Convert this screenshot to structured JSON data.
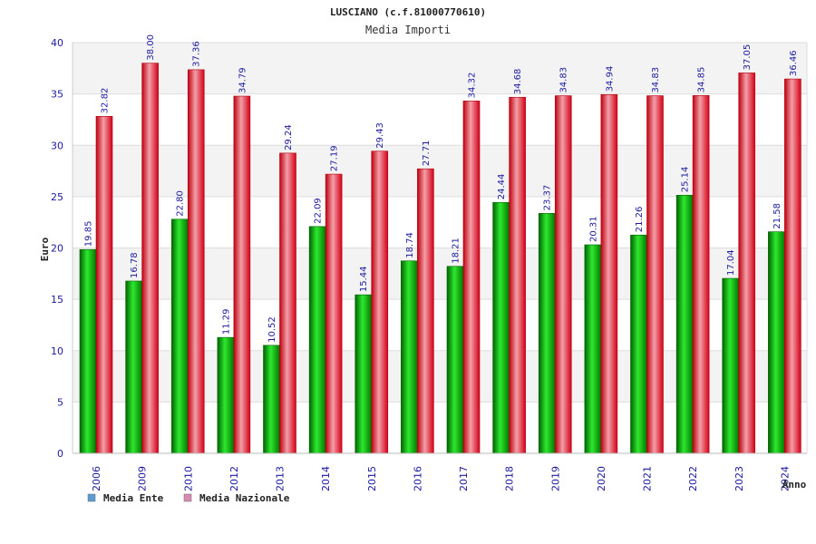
{
  "chart_data": {
    "type": "bar",
    "title": "LUSCIANO (c.f.81000770610)",
    "subtitle": "Media Importi",
    "ylabel": "Euro",
    "xlabel": "Anno",
    "ylim": [
      0,
      40
    ],
    "yticks": [
      0,
      5,
      10,
      15,
      20,
      25,
      30,
      35,
      40
    ],
    "grid": true,
    "legend_position": "bottom-left",
    "categories": [
      "2006",
      "2009",
      "2010",
      "2012",
      "2013",
      "2014",
      "2015",
      "2016",
      "2017",
      "2018",
      "2019",
      "2020",
      "2021",
      "2022",
      "2023",
      "2024"
    ],
    "series": [
      {
        "name": "Media Ente",
        "color": "#00b000",
        "legend_color": "#5b9bd5",
        "values": [
          19.85,
          16.78,
          22.8,
          11.29,
          10.52,
          22.09,
          15.44,
          18.74,
          18.21,
          24.44,
          23.37,
          20.31,
          21.26,
          25.14,
          17.04,
          21.58
        ],
        "labels": [
          "19.85",
          "16.78",
          "22.80",
          "11.29",
          "10.52",
          "22.09",
          "15.44",
          "18.74",
          "18.21",
          "24.44",
          "23.37",
          "20.31",
          "21.26",
          "25.14",
          "17.04",
          "21.58"
        ]
      },
      {
        "name": "Media Nazionale",
        "color": "#e8001c",
        "legend_color": "#d98cb3",
        "values": [
          32.82,
          38.0,
          37.36,
          34.79,
          29.24,
          27.19,
          29.43,
          27.71,
          34.32,
          34.68,
          34.83,
          34.94,
          34.83,
          34.85,
          37.05,
          36.46
        ],
        "labels": [
          "32.82",
          "38.00",
          "37.36",
          "34.79",
          "29.24",
          "27.19",
          "29.43",
          "27.71",
          "34.32",
          "34.68",
          "34.83",
          "34.94",
          "34.83",
          "34.85",
          "37.05",
          "36.46"
        ]
      }
    ]
  }
}
